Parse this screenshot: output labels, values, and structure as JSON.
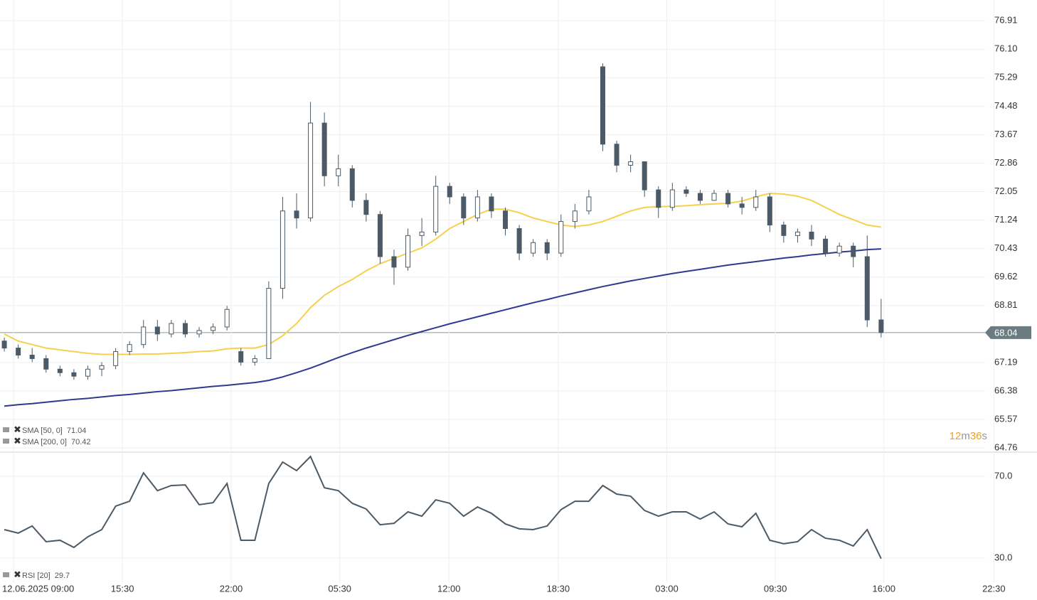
{
  "chart_data": [
    {
      "type": "candlestick",
      "open": [
        67.8,
        67.6,
        67.4,
        67.3,
        67.0,
        66.9,
        66.8,
        67.0,
        67.1,
        67.5,
        67.7,
        68.2,
        68.0,
        68.3,
        68.0,
        68.1,
        68.2,
        67.5,
        67.2,
        67.3,
        69.3,
        71.5,
        71.3,
        74.0,
        72.5,
        72.7,
        71.8,
        71.4,
        70.2,
        69.9,
        70.8,
        70.9,
        72.2,
        71.9,
        71.3,
        71.9,
        71.5,
        71.0,
        70.3,
        70.6,
        70.3,
        71.2,
        71.5,
        75.6,
        73.4,
        72.8,
        72.9,
        72.1,
        71.6,
        72.1,
        72.0,
        71.8,
        72.0,
        71.7,
        71.6,
        71.9,
        71.1,
        70.8,
        70.9,
        70.7,
        70.3,
        70.5,
        70.2,
        68.4
      ],
      "high": [
        67.9,
        67.7,
        67.6,
        67.4,
        67.1,
        67.0,
        67.1,
        67.2,
        67.6,
        67.8,
        68.4,
        68.4,
        68.4,
        68.4,
        68.2,
        68.3,
        68.8,
        67.6,
        67.4,
        69.5,
        71.9,
        72.0,
        74.6,
        74.3,
        73.1,
        72.8,
        72.0,
        71.5,
        70.4,
        71.0,
        71.3,
        72.5,
        72.3,
        72.0,
        72.1,
        72.0,
        71.6,
        71.1,
        70.7,
        70.7,
        71.4,
        71.7,
        72.1,
        75.7,
        73.5,
        73.1,
        72.9,
        72.2,
        72.3,
        72.2,
        72.1,
        72.1,
        72.1,
        71.9,
        72.1,
        72.0,
        71.2,
        71.0,
        71.1,
        70.8,
        70.6,
        70.6,
        70.8,
        69.0
      ],
      "low": [
        67.5,
        67.3,
        67.2,
        66.9,
        66.8,
        66.7,
        66.7,
        66.8,
        67.0,
        67.4,
        67.6,
        67.8,
        67.9,
        67.9,
        67.9,
        68.0,
        68.1,
        67.1,
        67.1,
        67.3,
        69.0,
        71.0,
        71.2,
        72.2,
        72.2,
        71.6,
        71.2,
        70.0,
        69.4,
        69.8,
        70.5,
        70.8,
        71.7,
        71.1,
        71.2,
        71.3,
        70.8,
        70.1,
        70.2,
        70.1,
        70.2,
        71.0,
        71.4,
        73.2,
        72.6,
        72.6,
        71.9,
        71.3,
        71.5,
        71.9,
        71.7,
        71.8,
        71.6,
        71.4,
        71.5,
        70.9,
        70.6,
        70.6,
        70.5,
        70.2,
        70.2,
        69.9,
        68.2,
        67.9
      ],
      "close": [
        67.6,
        67.4,
        67.3,
        67.0,
        66.9,
        66.8,
        67.0,
        67.1,
        67.5,
        67.7,
        68.2,
        68.0,
        68.3,
        68.0,
        68.1,
        68.2,
        68.7,
        67.2,
        67.3,
        69.3,
        71.5,
        71.3,
        74.0,
        72.5,
        72.7,
        71.8,
        71.4,
        70.2,
        69.9,
        70.8,
        70.9,
        72.2,
        71.9,
        71.3,
        71.9,
        71.5,
        71.0,
        70.3,
        70.6,
        70.3,
        71.2,
        71.5,
        71.9,
        73.4,
        72.8,
        72.9,
        72.1,
        71.6,
        72.1,
        72.0,
        71.8,
        72.0,
        71.7,
        71.6,
        71.9,
        71.1,
        70.8,
        70.9,
        70.7,
        70.3,
        70.5,
        70.2,
        68.4,
        68.04
      ],
      "candle_color": "#4b5a66",
      "series": [
        {
          "name": "SMA [50, 0]",
          "color": "#f6d04d",
          "values": [
            68.0,
            67.8,
            67.7,
            67.6,
            67.55,
            67.5,
            67.45,
            67.42,
            67.42,
            67.42,
            67.43,
            67.43,
            67.45,
            67.47,
            67.5,
            67.52,
            67.58,
            67.6,
            67.6,
            67.7,
            67.95,
            68.3,
            68.75,
            69.1,
            69.35,
            69.55,
            69.8,
            70.0,
            70.15,
            70.3,
            70.45,
            70.7,
            71.0,
            71.2,
            71.4,
            71.55,
            71.55,
            71.45,
            71.3,
            71.2,
            71.1,
            71.06,
            71.1,
            71.2,
            71.35,
            71.5,
            71.6,
            71.62,
            71.63,
            71.65,
            71.68,
            71.7,
            71.72,
            71.78,
            71.9,
            72.0,
            71.98,
            71.92,
            71.8,
            71.6,
            71.4,
            71.25,
            71.1,
            71.04
          ]
        },
        {
          "name": "SMA [200, 0]",
          "color": "#2e3a8f",
          "values": [
            65.95,
            65.99,
            66.02,
            66.06,
            66.1,
            66.14,
            66.17,
            66.21,
            66.25,
            66.28,
            66.32,
            66.36,
            66.39,
            66.43,
            66.47,
            66.51,
            66.54,
            66.58,
            66.62,
            66.68,
            66.78,
            66.9,
            67.03,
            67.18,
            67.33,
            67.47,
            67.6,
            67.72,
            67.84,
            67.96,
            68.07,
            68.18,
            68.29,
            68.39,
            68.49,
            68.59,
            68.69,
            68.79,
            68.89,
            68.98,
            69.08,
            69.17,
            69.26,
            69.35,
            69.43,
            69.51,
            69.58,
            69.65,
            69.72,
            69.78,
            69.84,
            69.9,
            69.96,
            70.01,
            70.06,
            70.11,
            70.16,
            70.2,
            70.25,
            70.29,
            70.33,
            70.36,
            70.4,
            70.42
          ]
        }
      ],
      "xlim": [
        -0.31,
        74.2
      ],
      "ylim": [
        64.64,
        77.5
      ],
      "yticks": [
        76.91,
        {
          "value": 76.1,
          "label": "76.10"
        },
        75.29,
        74.48,
        73.67,
        72.86,
        72.05,
        71.24,
        70.43,
        69.62,
        68.81,
        67.19,
        66.38,
        65.57,
        64.76
      ],
      "grid": true,
      "countdown": {
        "minutes": 12,
        "minutes_unit": "m",
        "seconds": 36,
        "seconds_unit": "s"
      }
    },
    {
      "type": "line",
      "series": [
        {
          "name": "RSI [20]",
          "color": "#4b5a66",
          "values": [
            43.9,
            42.2,
            45.7,
            38.0,
            38.7,
            35.2,
            40.4,
            43.9,
            55.4,
            57.8,
            71.7,
            63.0,
            65.5,
            65.8,
            56.1,
            57.1,
            66.5,
            38.7,
            38.7,
            66.5,
            77.0,
            72.8,
            79.7,
            64.4,
            63.0,
            56.8,
            54.0,
            46.3,
            47.0,
            52.6,
            50.5,
            58.5,
            56.8,
            50.5,
            55.0,
            51.9,
            46.7,
            44.3,
            43.9,
            45.7,
            53.7,
            57.8,
            57.8,
            65.5,
            61.3,
            60.3,
            53.3,
            50.5,
            52.6,
            52.6,
            49.1,
            52.6,
            46.7,
            45.3,
            51.9,
            38.7,
            37.0,
            38.0,
            43.9,
            39.7,
            38.7,
            35.9,
            43.9,
            29.7
          ]
        }
      ],
      "xlim": [
        -0.31,
        74.2
      ],
      "ylim": [
        17.8,
        81.5
      ],
      "yticks": [
        {
          "value": 70,
          "label": "70.0"
        },
        {
          "value": 30,
          "label": "30.0"
        }
      ],
      "xticks": [
        {
          "value": 0.66,
          "label": "12.06.2025 09:00"
        },
        {
          "value": 8.49,
          "label": "15:30"
        },
        {
          "value": 16.3,
          "label": "22:00"
        },
        {
          "value": 24.1,
          "label": "05:30"
        },
        {
          "value": 31.95,
          "label": "12:00"
        },
        {
          "value": 39.8,
          "label": "18:30"
        },
        {
          "value": 47.6,
          "label": "03:00"
        },
        {
          "value": 55.4,
          "label": "09:30"
        },
        {
          "value": 63.2,
          "label": "16:00"
        },
        {
          "value": 71.1,
          "label": "22:30"
        }
      ],
      "grid": true
    }
  ]
}
